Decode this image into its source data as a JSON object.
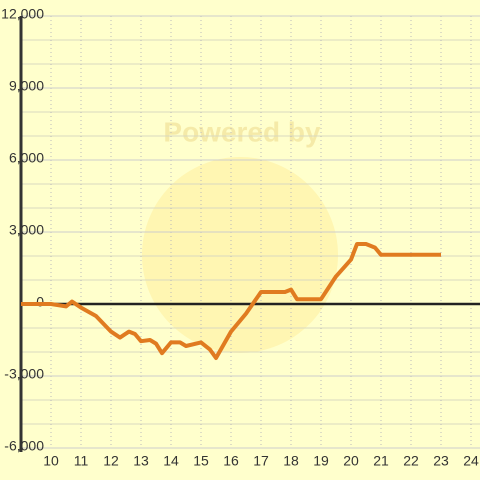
{
  "chart_data": {
    "type": "line",
    "watermark": "Powered by",
    "x": [
      9,
      10,
      10.5,
      10.7,
      11,
      11.5,
      12,
      12.3,
      12.6,
      12.8,
      13,
      13.3,
      13.5,
      13.7,
      14,
      14.3,
      14.5,
      15,
      15.3,
      15.5,
      16,
      16.5,
      17,
      17.5,
      17.8,
      18,
      18.2,
      19,
      19.5,
      20,
      20.2,
      20.5,
      20.8,
      21,
      22,
      23
    ],
    "series": [
      {
        "color": "#e07b20",
        "values": [
          0,
          0,
          -100,
          100,
          -150,
          -500,
          -1150,
          -1400,
          -1150,
          -1250,
          -1550,
          -1500,
          -1650,
          -2050,
          -1600,
          -1600,
          -1750,
          -1600,
          -1900,
          -2250,
          -1150,
          -400,
          500,
          500,
          500,
          600,
          200,
          200,
          1150,
          1850,
          2500,
          2500,
          2350,
          2050,
          2050,
          2050
        ]
      }
    ],
    "xlim": [
      9,
      24.3
    ],
    "xticks": [
      10,
      11,
      12,
      13,
      14,
      15,
      16,
      17,
      18,
      19,
      20,
      21,
      22,
      23,
      24
    ],
    "ylim": [
      -6000,
      12000
    ],
    "yticks": [
      {
        "value": -6000,
        "label": "-6,000"
      },
      {
        "value": -3000,
        "label": "-3,000"
      },
      0,
      {
        "value": 3000,
        "label": "3,000"
      },
      {
        "value": 6000,
        "label": "6,000"
      },
      {
        "value": 9000,
        "label": "9,000"
      },
      {
        "value": 12000,
        "label": "12,000"
      }
    ],
    "grid": true
  }
}
